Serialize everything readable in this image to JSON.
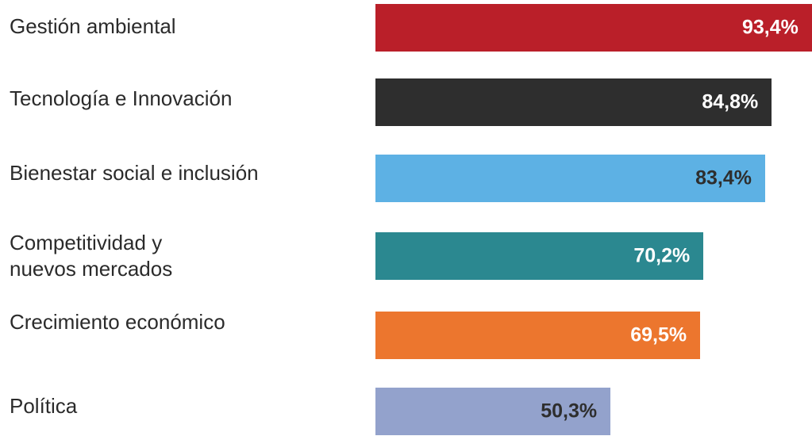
{
  "chart_data": {
    "type": "bar",
    "orientation": "horizontal",
    "categories": [
      "Gestión ambiental",
      "Tecnología e Innovación",
      "Bienestar social e inclusión",
      "Competitividad y\nnuevos mercados",
      "Crecimiento económico",
      "Política"
    ],
    "values": [
      93.4,
      84.8,
      83.4,
      70.2,
      69.5,
      50.3
    ],
    "value_labels": [
      "93,4%",
      "84,8%",
      "83,4%",
      "70,2%",
      "69,5%",
      "50,3%"
    ],
    "colors": [
      "#ba1f29",
      "#2e2e2e",
      "#5db1e4",
      "#2b8890",
      "#ec762e",
      "#93a2cc"
    ],
    "label_colors": [
      "#ffffff",
      "#ffffff",
      "#2e2e2e",
      "#ffffff",
      "#ffffff",
      "#2e2e2e"
    ],
    "title": "",
    "xlabel": "",
    "ylabel": "",
    "grid": false,
    "legend": false
  }
}
